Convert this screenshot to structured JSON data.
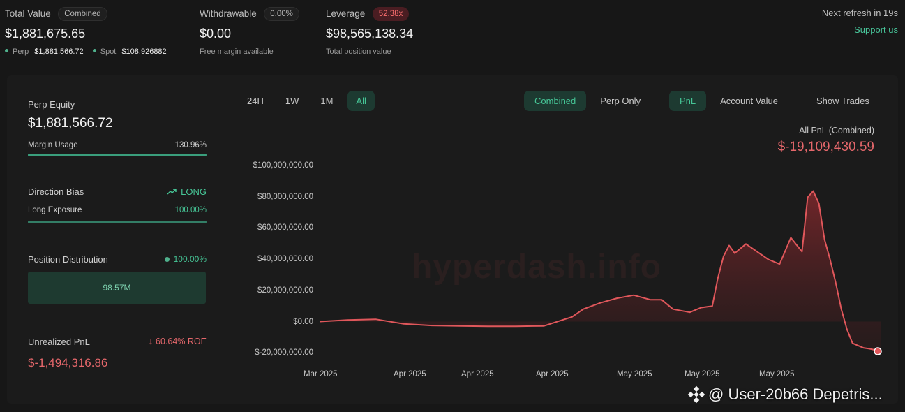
{
  "summary": {
    "total_value": {
      "label": "Total Value",
      "pill": "Combined",
      "value": "$1,881,675.65",
      "perp_label": "Perp",
      "perp_value": "$1,881,566.72",
      "spot_label": "Spot",
      "spot_value": "$108.926882"
    },
    "withdrawable": {
      "label": "Withdrawable",
      "pill": "0.00%",
      "value": "$0.00",
      "sub": "Free margin available"
    },
    "leverage": {
      "label": "Leverage",
      "pill": "52.38x",
      "value": "$98,565,138.34",
      "sub": "Total position value"
    },
    "refresh": "Next refresh in 19s",
    "support": "Support us"
  },
  "sidebar": {
    "perp_equity_label": "Perp Equity",
    "perp_equity_value": "$1,881,566.72",
    "margin_usage_label": "Margin Usage",
    "margin_usage_value": "130.96%",
    "direction_bias_label": "Direction Bias",
    "direction_bias_value": "LONG",
    "long_exposure_label": "Long Exposure",
    "long_exposure_value": "100.00%",
    "position_distribution_label": "Position Distribution",
    "position_distribution_value": "100.00%",
    "position_distribution_amount": "98.57M",
    "unrealized_pnl_label": "Unrealized PnL",
    "unrealized_roe": "60.64% ROE",
    "unrealized_pnl_value": "$-1,494,316.86"
  },
  "toolbar": {
    "range_tabs": [
      "24H",
      "1W",
      "1M",
      "All"
    ],
    "active_range": "All",
    "view_tabs": [
      "Combined",
      "Perp Only"
    ],
    "metric_tabs": [
      "PnL",
      "Account Value"
    ],
    "show_trades": "Show Trades"
  },
  "chart_header": {
    "label": "All PnL (Combined)",
    "value": "$-19,109,430.59"
  },
  "colors": {
    "accent_green": "#46c596",
    "loss_red": "#e5676b",
    "line_red": "#e0575b"
  },
  "watermark": "hyperdash.info",
  "overlay_credit": "@ User-20b66 Depetris...",
  "chart_data": {
    "type": "area",
    "title": "",
    "xlabel": "",
    "ylabel": "",
    "ylim": [
      -20000000,
      100000000
    ],
    "y_ticks": [
      "$100,000,000.00",
      "$80,000,000.00",
      "$60,000,000.00",
      "$40,000,000.00",
      "$20,000,000.00",
      "$0.00",
      "$-20,000,000.00"
    ],
    "x_ticks": [
      "Mar 2025",
      "Apr 2025",
      "Apr 2025",
      "Apr 2025",
      "May 2025",
      "May 2025",
      "May 2025"
    ],
    "series": [
      {
        "x": [
          0,
          0.05,
          0.1,
          0.15,
          0.2,
          0.25,
          0.3,
          0.35,
          0.4,
          0.45,
          0.47,
          0.5,
          0.53,
          0.56,
          0.59,
          0.61,
          0.63,
          0.66,
          0.68,
          0.7,
          0.71,
          0.72,
          0.73,
          0.74,
          0.76,
          0.78,
          0.8,
          0.82,
          0.84,
          0.86,
          0.87,
          0.88,
          0.89,
          0.9,
          0.91,
          0.92,
          0.93,
          0.94,
          0.95,
          0.97,
          0.98,
          1.0
        ],
        "values": [
          0,
          1000000,
          1500000,
          -1500000,
          -2500000,
          -2800000,
          -3000000,
          -3000000,
          -2800000,
          3000000,
          8000000,
          12000000,
          15000000,
          17000000,
          14000000,
          14000000,
          8000000,
          6000000,
          9000000,
          10000000,
          28000000,
          42000000,
          49000000,
          44000000,
          50000000,
          45000000,
          40000000,
          37000000,
          54000000,
          45000000,
          80000000,
          84000000,
          76000000,
          53000000,
          40000000,
          25000000,
          8000000,
          -5000000,
          -14000000,
          -17000000,
          -17500000,
          -19109430
        ]
      }
    ]
  }
}
